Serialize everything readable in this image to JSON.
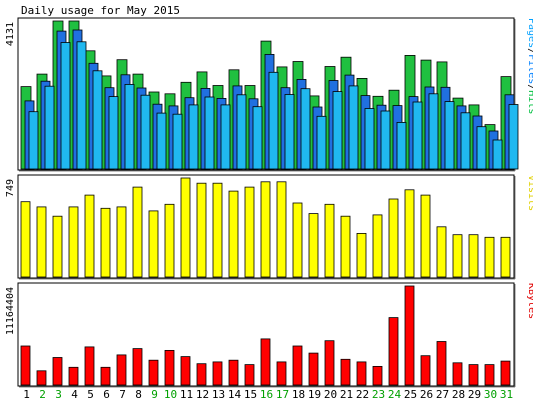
{
  "chart_data": {
    "type": "bar",
    "title": "Daily usage for May 2015",
    "categories": [
      "1",
      "2",
      "3",
      "4",
      "5",
      "6",
      "7",
      "8",
      "9",
      "10",
      "11",
      "12",
      "13",
      "14",
      "15",
      "16",
      "17",
      "18",
      "19",
      "20",
      "21",
      "22",
      "23",
      "24",
      "25",
      "26",
      "27",
      "28",
      "29",
      "30",
      "31"
    ],
    "weekend_days": [
      "2",
      "3",
      "9",
      "10",
      "16",
      "17",
      "23",
      "24",
      "30",
      "31"
    ],
    "panels": [
      {
        "id": "hits",
        "max_label": "4131",
        "ylim": [
          0,
          4131
        ],
        "legend": [
          {
            "text": "Pages",
            "color": "#00a0ff"
          },
          {
            "text": "/",
            "color": "#000000"
          },
          {
            "text": "Files",
            "color": "#0080ff"
          },
          {
            "text": "/",
            "color": "#000000"
          },
          {
            "text": "Hits",
            "color": "#00c040"
          }
        ],
        "series": [
          {
            "name": "Hits",
            "color": "#20c040",
            "values": [
              2300,
              2650,
              4131,
              4131,
              3300,
              2600,
              3050,
              2650,
              2150,
              2100,
              2420,
              2710,
              2330,
              2770,
              2330,
              3570,
              2850,
              3000,
              2040,
              2860,
              3120,
              2530,
              2030,
              2200,
              3170,
              3040,
              2990,
              1980,
              1790,
              1240,
              2580
            ]
          },
          {
            "name": "Files",
            "color": "#2070e0",
            "values": [
              1900,
              2450,
              3850,
              3880,
              2950,
              2270,
              2630,
              2260,
              1810,
              1760,
              1990,
              2250,
              1970,
              2320,
              1960,
              3200,
              2270,
              2500,
              1730,
              2470,
              2620,
              2050,
              1780,
              1770,
              2020,
              2290,
              2280,
              1760,
              1480,
              1060,
              2070
            ]
          },
          {
            "name": "Pages",
            "color": "#20b8f0",
            "values": [
              1600,
              2310,
              3530,
              3550,
              2740,
              2020,
              2360,
              2060,
              1560,
              1530,
              1790,
              2010,
              1790,
              2070,
              1740,
              2700,
              2080,
              2240,
              1470,
              2160,
              2320,
              1690,
              1620,
              1300,
              1870,
              2100,
              1880,
              1570,
              1180,
              810,
              1800
            ]
          }
        ]
      },
      {
        "id": "visits",
        "max_label": "749",
        "ylim": [
          0,
          749
        ],
        "legend": [
          {
            "text": "Visits",
            "color": "#e0d000"
          }
        ],
        "series": [
          {
            "name": "Visits",
            "color": "#ffff00",
            "values": [
              570,
              530,
              460,
              530,
              620,
              520,
              530,
              680,
              500,
              550,
              749,
              710,
              710,
              650,
              680,
              720,
              720,
              560,
              480,
              550,
              460,
              330,
              470,
              590,
              660,
              620,
              380,
              320,
              320,
              300,
              300
            ]
          }
        ]
      },
      {
        "id": "kbytes",
        "max_label": "11164404",
        "ylim": [
          0,
          11164404
        ],
        "legend": [
          {
            "text": "KBytes",
            "color": "#e00000"
          }
        ],
        "series": [
          {
            "name": "KBytes",
            "color": "#ff0000",
            "values": [
              4400000,
              1600000,
              3100000,
              2000000,
              4300000,
              2000000,
              3400000,
              4100000,
              2800000,
              3900000,
              3200000,
              2400000,
              2600000,
              2800000,
              2300000,
              5200000,
              2600000,
              4400000,
              3600000,
              5000000,
              2900000,
              2600000,
              2100000,
              7600000,
              11164404,
              3300000,
              4900000,
              2500000,
              2300000,
              2300000,
              2700000
            ]
          }
        ]
      }
    ]
  }
}
